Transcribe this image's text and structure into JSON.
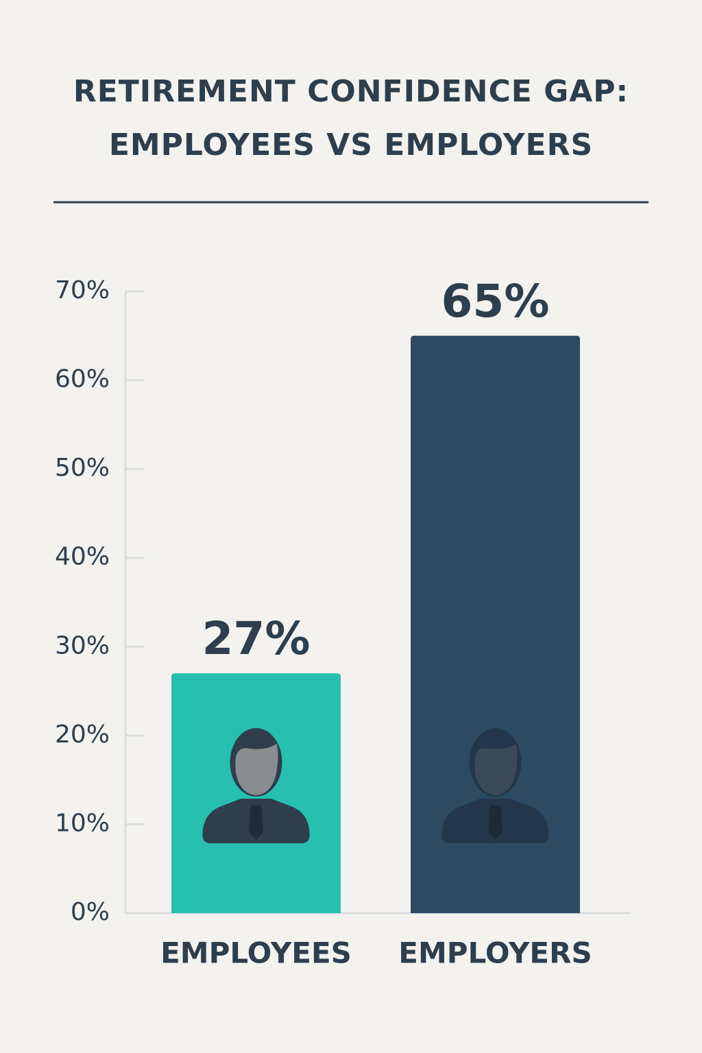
{
  "chart_data": {
    "type": "bar",
    "title": "RETIREMENT CONFIDENCE GAP: EMPLOYEES VS EMPLOYERS",
    "categories": [
      "EMPLOYEES",
      "EMPLOYERS"
    ],
    "values": [
      27,
      65
    ],
    "value_labels": [
      "27%",
      "65%"
    ],
    "colors": [
      "#26bfb0",
      "#2d4a63"
    ],
    "ylim": [
      0,
      70
    ],
    "yticks": [
      {
        "value": 0,
        "label": "0%"
      },
      {
        "value": 10,
        "label": "10%"
      },
      {
        "value": 20,
        "label": "20%"
      },
      {
        "value": 30,
        "label": "30%"
      },
      {
        "value": 40,
        "label": "40%"
      },
      {
        "value": 50,
        "label": "50%"
      },
      {
        "value": 60,
        "label": "60%"
      },
      {
        "value": 70,
        "label": "70%"
      }
    ]
  }
}
